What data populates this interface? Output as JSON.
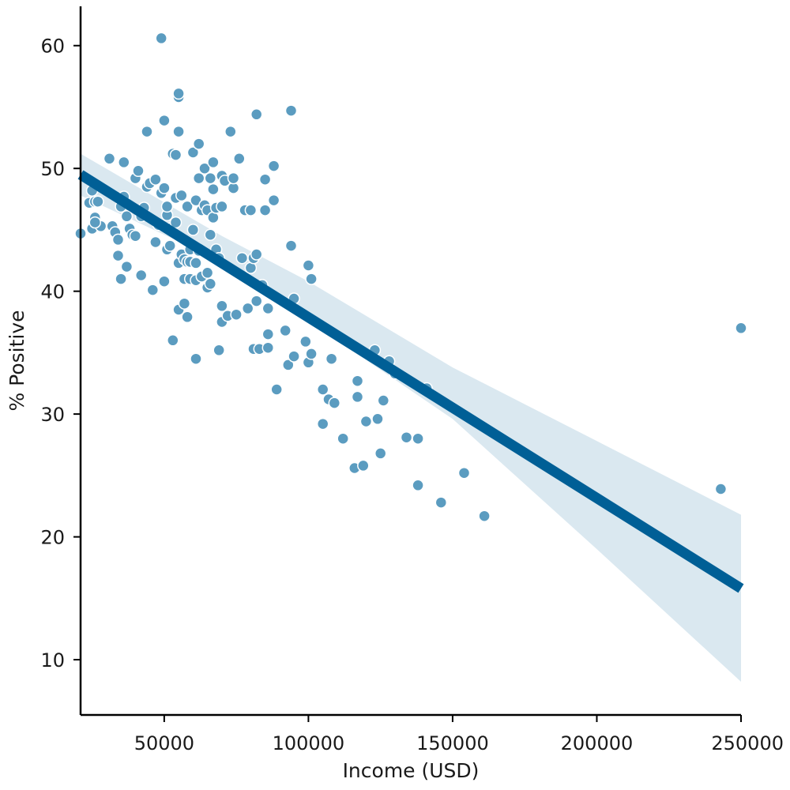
{
  "chart_data": {
    "type": "scatter",
    "xlabel": "Income (USD)",
    "ylabel": "% Positive",
    "xlim": [
      21000,
      250000
    ],
    "ylim": [
      5.5,
      63.2
    ],
    "x_ticks": [
      50000,
      100000,
      150000,
      200000,
      250000
    ],
    "x_tick_labels": [
      "50000",
      "100000",
      "150000",
      "200000",
      "250000"
    ],
    "y_ticks": [
      10,
      20,
      30,
      40,
      50,
      60
    ],
    "y_tick_labels": [
      "10",
      "20",
      "30",
      "40",
      "50",
      "60"
    ],
    "grid": false,
    "colors": {
      "points": "#5b9cc0",
      "line": "#005f96",
      "band": "#dae8f0"
    },
    "regression": {
      "line": [
        [
          21000,
          49.5
        ],
        [
          250000,
          15.8
        ]
      ],
      "ci_upper": [
        [
          21000,
          51.2
        ],
        [
          70000,
          44.5
        ],
        [
          100000,
          40.8
        ],
        [
          150000,
          33.8
        ],
        [
          200000,
          27.8
        ],
        [
          250000,
          21.8
        ]
      ],
      "ci_lower": [
        [
          21000,
          47.8
        ],
        [
          70000,
          42.4
        ],
        [
          100000,
          37.6
        ],
        [
          150000,
          29.6
        ],
        [
          200000,
          19.0
        ],
        [
          250000,
          8.2
        ]
      ]
    },
    "points": [
      [
        21000,
        44.7
      ],
      [
        24000,
        47.2
      ],
      [
        25000,
        48.2
      ],
      [
        25000,
        45.1
      ],
      [
        26000,
        46.0
      ],
      [
        26000,
        47.3
      ],
      [
        27000,
        47.3
      ],
      [
        28000,
        45.3
      ],
      [
        26000,
        45.6
      ],
      [
        31000,
        50.8
      ],
      [
        32000,
        45.3
      ],
      [
        33000,
        44.8
      ],
      [
        34000,
        42.9
      ],
      [
        34000,
        44.2
      ],
      [
        35000,
        41.0
      ],
      [
        35000,
        46.9
      ],
      [
        36000,
        50.5
      ],
      [
        36000,
        47.7
      ],
      [
        37000,
        46.1
      ],
      [
        37000,
        42.0
      ],
      [
        38000,
        45.1
      ],
      [
        39000,
        44.6
      ],
      [
        40000,
        49.2
      ],
      [
        40000,
        44.5
      ],
      [
        41000,
        49.8
      ],
      [
        42000,
        41.3
      ],
      [
        42000,
        46.1
      ],
      [
        43000,
        46.8
      ],
      [
        44000,
        48.5
      ],
      [
        44000,
        53.0
      ],
      [
        45000,
        48.8
      ],
      [
        46000,
        40.1
      ],
      [
        47000,
        49.1
      ],
      [
        47000,
        44.0
      ],
      [
        48000,
        45.4
      ],
      [
        49000,
        48.0
      ],
      [
        49000,
        60.6
      ],
      [
        50000,
        48.4
      ],
      [
        50000,
        53.9
      ],
      [
        50000,
        40.8
      ],
      [
        51000,
        46.2
      ],
      [
        51000,
        46.9
      ],
      [
        51000,
        43.4
      ],
      [
        52000,
        45.1
      ],
      [
        52000,
        43.7
      ],
      [
        53000,
        51.2
      ],
      [
        53000,
        36.0
      ],
      [
        54000,
        51.1
      ],
      [
        54000,
        45.6
      ],
      [
        54000,
        47.6
      ],
      [
        55000,
        55.8
      ],
      [
        55000,
        56.1
      ],
      [
        55000,
        53.0
      ],
      [
        55000,
        42.3
      ],
      [
        55000,
        38.5
      ],
      [
        56000,
        47.8
      ],
      [
        56000,
        43.0
      ],
      [
        57000,
        41.0
      ],
      [
        57000,
        39.0
      ],
      [
        57000,
        42.6
      ],
      [
        58000,
        42.4
      ],
      [
        58000,
        46.9
      ],
      [
        58000,
        37.9
      ],
      [
        59000,
        41.0
      ],
      [
        59000,
        43.4
      ],
      [
        59000,
        42.4
      ],
      [
        60000,
        51.3
      ],
      [
        60000,
        45.0
      ],
      [
        61000,
        42.3
      ],
      [
        61000,
        34.5
      ],
      [
        61000,
        47.4
      ],
      [
        61000,
        40.9
      ],
      [
        62000,
        49.2
      ],
      [
        62000,
        52.0
      ],
      [
        62000,
        43.3
      ],
      [
        63000,
        46.6
      ],
      [
        63000,
        41.2
      ],
      [
        64000,
        50.0
      ],
      [
        64000,
        47.0
      ],
      [
        65000,
        46.6
      ],
      [
        65000,
        41.5
      ],
      [
        65000,
        40.3
      ],
      [
        66000,
        49.2
      ],
      [
        66000,
        40.6
      ],
      [
        66000,
        44.6
      ],
      [
        67000,
        48.3
      ],
      [
        67000,
        50.5
      ],
      [
        67000,
        46.0
      ],
      [
        68000,
        46.8
      ],
      [
        68000,
        43.4
      ],
      [
        69000,
        35.2
      ],
      [
        69000,
        42.7
      ],
      [
        70000,
        49.4
      ],
      [
        70000,
        46.9
      ],
      [
        70000,
        37.5
      ],
      [
        70000,
        38.8
      ],
      [
        71000,
        49.0
      ],
      [
        72000,
        38.0
      ],
      [
        73000,
        53.0
      ],
      [
        74000,
        48.4
      ],
      [
        74000,
        49.2
      ],
      [
        75000,
        38.1
      ],
      [
        76000,
        50.8
      ],
      [
        77000,
        42.7
      ],
      [
        78000,
        46.6
      ],
      [
        79000,
        38.6
      ],
      [
        80000,
        41.9
      ],
      [
        80000,
        46.6
      ],
      [
        81000,
        42.7
      ],
      [
        81000,
        35.3
      ],
      [
        82000,
        54.4
      ],
      [
        82000,
        43.0
      ],
      [
        82000,
        39.2
      ],
      [
        83000,
        35.3
      ],
      [
        84000,
        40.5
      ],
      [
        85000,
        49.1
      ],
      [
        85000,
        46.6
      ],
      [
        86000,
        36.5
      ],
      [
        86000,
        35.4
      ],
      [
        86000,
        38.6
      ],
      [
        88000,
        47.4
      ],
      [
        88000,
        50.2
      ],
      [
        89000,
        32.0
      ],
      [
        92000,
        36.8
      ],
      [
        93000,
        34.0
      ],
      [
        94000,
        43.7
      ],
      [
        94000,
        54.7
      ],
      [
        95000,
        39.4
      ],
      [
        95000,
        34.7
      ],
      [
        99000,
        35.9
      ],
      [
        100000,
        42.1
      ],
      [
        100000,
        34.2
      ],
      [
        101000,
        41.0
      ],
      [
        101000,
        34.9
      ],
      [
        105000,
        32.0
      ],
      [
        105000,
        29.2
      ],
      [
        107000,
        31.2
      ],
      [
        108000,
        34.5
      ],
      [
        109000,
        30.9
      ],
      [
        112000,
        28.0
      ],
      [
        116000,
        25.6
      ],
      [
        117000,
        31.4
      ],
      [
        117000,
        32.7
      ],
      [
        119000,
        25.8
      ],
      [
        120000,
        29.4
      ],
      [
        123000,
        35.2
      ],
      [
        124000,
        29.6
      ],
      [
        125000,
        26.8
      ],
      [
        126000,
        31.1
      ],
      [
        128000,
        34.3
      ],
      [
        130000,
        33.3
      ],
      [
        134000,
        28.1
      ],
      [
        138000,
        28.0
      ],
      [
        138000,
        24.2
      ],
      [
        141000,
        32.1
      ],
      [
        146000,
        22.8
      ],
      [
        154000,
        25.2
      ],
      [
        161000,
        21.7
      ],
      [
        243000,
        23.9
      ],
      [
        250000,
        37.0
      ]
    ]
  }
}
